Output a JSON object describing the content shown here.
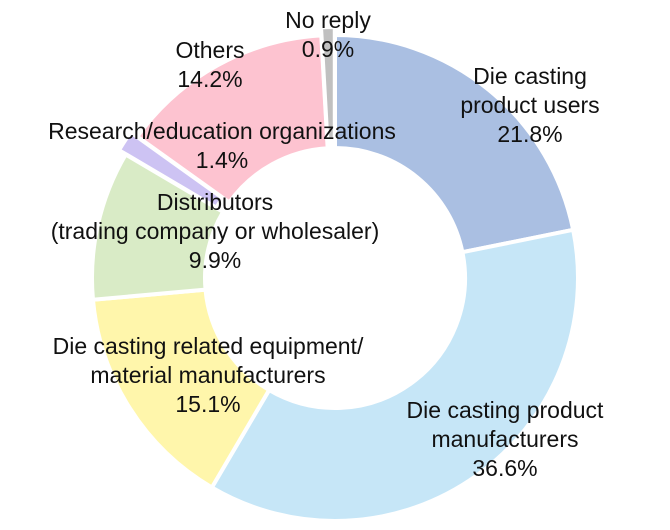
{
  "chart_data": {
    "type": "pie",
    "variant": "donut",
    "title": "",
    "start": "top, clockwise",
    "slices": [
      {
        "lines": [
          "Die casting",
          "product users"
        ],
        "value": 21.8,
        "value_label": "21.8%",
        "color": "#aabfe2"
      },
      {
        "lines": [
          "Die casting product",
          "manufacturers"
        ],
        "value": 36.6,
        "value_label": "36.6%",
        "color": "#c6e6f7"
      },
      {
        "lines": [
          "Die casting related equipment/",
          "material manufacturers"
        ],
        "value": 15.1,
        "value_label": "15.1%",
        "color": "#fff6ab"
      },
      {
        "lines": [
          "Distributors",
          "(trading company or wholesaler)"
        ],
        "value": 9.9,
        "value_label": "9.9%",
        "color": "#d9ebc6"
      },
      {
        "lines": [
          "Research/education organizations"
        ],
        "value": 1.4,
        "value_label": "1.4%",
        "color": "#cdc3f3"
      },
      {
        "lines": [
          "Others"
        ],
        "value": 14.2,
        "value_label": "14.2%",
        "color": "#fdc3d0"
      },
      {
        "lines": [
          "No reply"
        ],
        "value": 0.9,
        "value_label": "0.9%",
        "color": "#c0c0c0"
      }
    ]
  }
}
